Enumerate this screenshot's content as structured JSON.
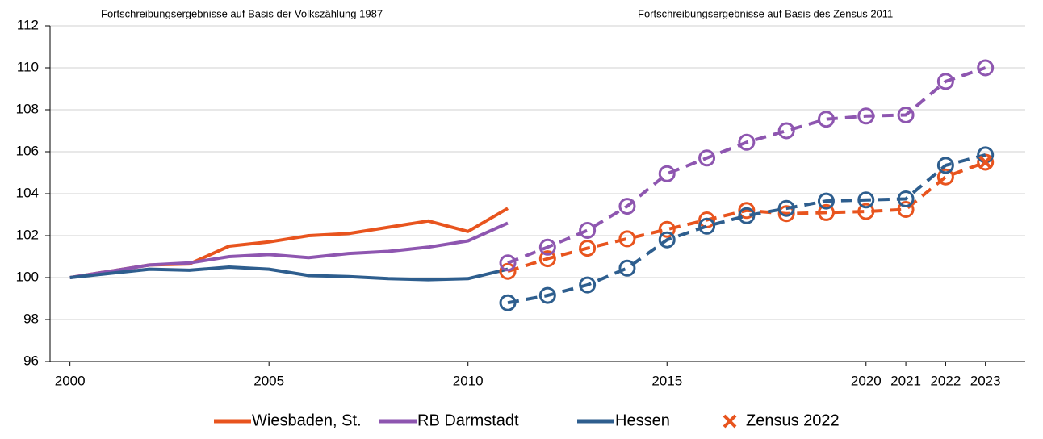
{
  "chart_data": {
    "type": "line",
    "annotations": [
      "Fortschreibungsergebnisse auf Basis der Volkszählung 1987",
      "Fortschreibungsergebnisse auf Basis des Zensus 2011"
    ],
    "x": [
      2000,
      2001,
      2002,
      2003,
      2004,
      2005,
      2006,
      2007,
      2008,
      2009,
      2010,
      2011
    ],
    "x_census": [
      2011,
      2012,
      2013,
      2014,
      2015,
      2016,
      2017,
      2018,
      2019,
      2020,
      2021,
      2022,
      2023
    ],
    "series": [
      {
        "name": "Wiesbaden, St.",
        "color": "#e8541e",
        "values": [
          100,
          100.3,
          100.6,
          100.65,
          101.5,
          101.7,
          102.0,
          102.1,
          102.4,
          102.7,
          102.2,
          103.3
        ],
        "values_census": [
          100.3,
          100.9,
          101.4,
          101.85,
          102.3,
          102.75,
          103.2,
          103.05,
          103.1,
          103.15,
          103.25,
          104.8,
          105.5
        ]
      },
      {
        "name": "RB Darmstadt",
        "color": "#8e56b0",
        "values": [
          100,
          100.3,
          100.6,
          100.7,
          101.0,
          101.1,
          100.95,
          101.15,
          101.25,
          101.45,
          101.75,
          102.6
        ],
        "values_census": [
          100.7,
          101.45,
          102.25,
          103.4,
          104.95,
          105.7,
          106.45,
          107.0,
          107.55,
          107.7,
          107.75,
          109.35,
          110.0
        ]
      },
      {
        "name": "Hessen",
        "color": "#2e5e8e",
        "values": [
          100,
          100.2,
          100.4,
          100.35,
          100.5,
          100.4,
          100.1,
          100.05,
          99.95,
          99.9,
          99.95,
          100.4
        ],
        "values_census": [
          98.8,
          99.15,
          99.65,
          100.45,
          101.8,
          102.45,
          102.95,
          103.3,
          103.65,
          103.7,
          103.75,
          105.35,
          105.85
        ]
      }
    ],
    "markers": {
      "name": "Zensus 2022",
      "color": "#e8541e",
      "x": [
        2023
      ],
      "values": [
        105.5
      ]
    },
    "xlim": [
      1999.5,
      2024
    ],
    "xticks": [
      2000,
      2005,
      2010,
      2015,
      2020,
      2021,
      2022,
      2023
    ],
    "ylim": [
      96,
      112
    ],
    "yticks": [
      96,
      98,
      100,
      102,
      104,
      106,
      108,
      110,
      112
    ],
    "grid": true
  }
}
